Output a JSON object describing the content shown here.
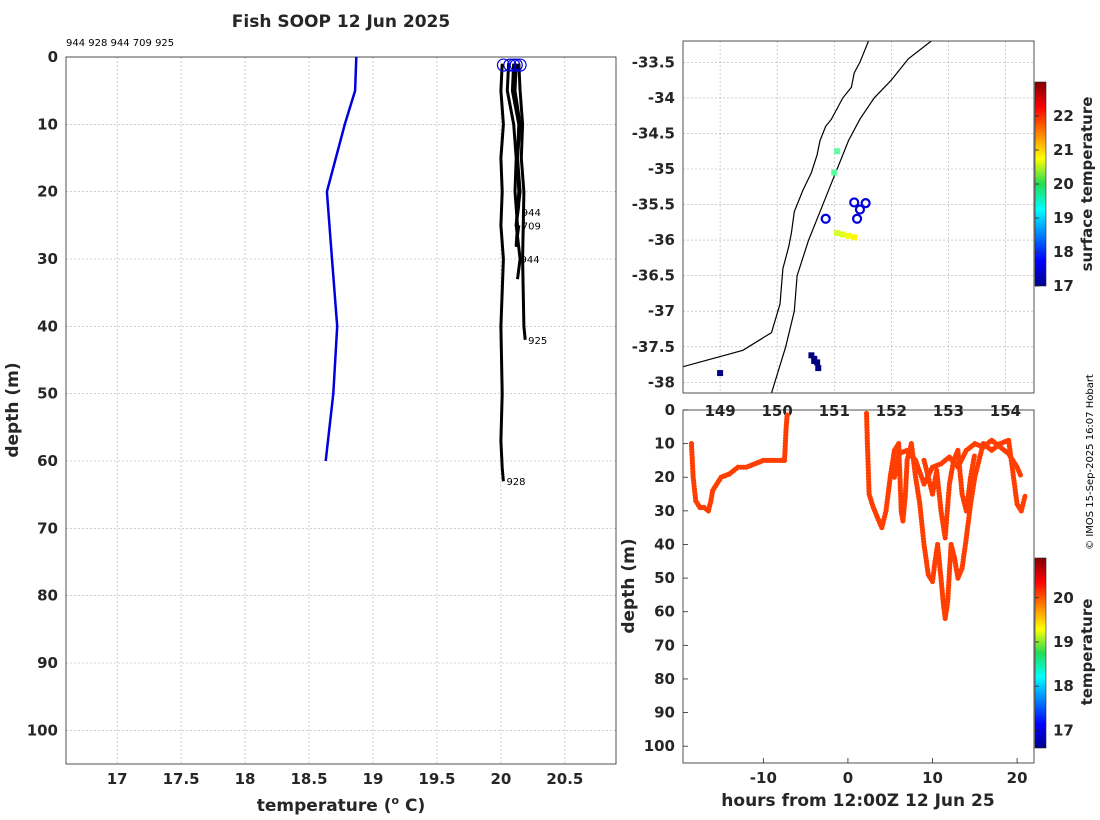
{
  "credit": "© IMOS 15-Sep-2025 16:07 Hobart",
  "chart_data": [
    {
      "id": "profile",
      "type": "line",
      "title": "Fish SOOP 12 Jun 2025",
      "subtitle": "944 928 944 709 925",
      "xlabel": "temperature (",
      "xlabel_sup": "o",
      "xlabel_end": " C)",
      "ylabel": "depth (m)",
      "xlim": [
        16.6,
        20.9
      ],
      "ylim": [
        0,
        105
      ],
      "y_reversed": true,
      "grid": true,
      "xticks": [
        17,
        17.5,
        18,
        18.5,
        19,
        19.5,
        20,
        20.5
      ],
      "xtick_labels": [
        "17",
        "17.5",
        "18",
        "18.5",
        "19",
        "19.5",
        "20",
        "20.5"
      ],
      "yticks": [
        0,
        10,
        20,
        30,
        40,
        50,
        60,
        70,
        80,
        90,
        100
      ],
      "reference_profile": {
        "color": "#0000dd",
        "temperature": [
          18.87,
          18.86,
          18.78,
          18.64,
          18.68,
          18.72,
          18.69,
          18.63
        ],
        "depth": [
          0,
          5,
          10,
          20,
          30,
          40,
          50,
          60
        ]
      },
      "profiles": [
        {
          "label": "928",
          "temperature": [
            20.01,
            20.0,
            20.02,
            20.0,
            20.01,
            20.0,
            20.02,
            20.0,
            20.01,
            20.0,
            20.01,
            20.02
          ],
          "depth": [
            1,
            5,
            10,
            15,
            20,
            25,
            30,
            40,
            50,
            57,
            61,
            63
          ],
          "label_depth": 63
        },
        {
          "label": "944",
          "temperature": [
            20.06,
            20.05,
            20.1,
            20.12,
            20.11,
            20.13,
            20.12,
            20.14
          ],
          "depth": [
            1,
            5,
            10,
            15,
            20,
            25,
            28,
            25
          ],
          "label_depth": 23
        },
        {
          "label": "709",
          "temperature": [
            20.1,
            20.09,
            20.14,
            20.13,
            20.15,
            20.12,
            20.14
          ],
          "depth": [
            1,
            5,
            10,
            15,
            20,
            25,
            22
          ],
          "label_depth": 25
        },
        {
          "label": "944",
          "temperature": [
            20.12,
            20.11,
            20.15,
            20.13,
            20.14,
            20.12,
            20.15,
            20.13
          ],
          "depth": [
            1,
            5,
            10,
            15,
            20,
            25,
            30,
            33
          ],
          "label_depth": 30
        },
        {
          "label": "925",
          "temperature": [
            20.14,
            20.15,
            20.17,
            20.16,
            20.18,
            20.17,
            20.18,
            20.19
          ],
          "depth": [
            1,
            5,
            10,
            15,
            20,
            30,
            40,
            42
          ],
          "label_depth": 42
        }
      ],
      "surface_markers_temperature": [
        20.02,
        20.07,
        20.1,
        20.12,
        20.15
      ],
      "marker_color": "#0000dd"
    },
    {
      "id": "map",
      "type": "scatter",
      "xlim": [
        148.35,
        154.5
      ],
      "ylim": [
        -38.15,
        -33.2
      ],
      "xticks": [
        149,
        150,
        151,
        152,
        153,
        154
      ],
      "xtick_labels": [
        "149",
        "150",
        "151",
        "152",
        "153",
        "154"
      ],
      "yticks": [
        -33.5,
        -34,
        -34.5,
        -35,
        -35.5,
        -36,
        -36.5,
        -37,
        -37.5,
        -38
      ],
      "ytick_labels": [
        "-33.5",
        "-34",
        "-34.5",
        "-35",
        "-35.5",
        "-36",
        "-36.5",
        "-37",
        "-37.5",
        "-38"
      ],
      "grid": true,
      "colorbar": {
        "label": "surface temperature",
        "range": [
          17,
          23
        ],
        "ticks": [
          17,
          18,
          19,
          20,
          21,
          22
        ]
      },
      "coastline": {
        "lon": [
          148.35,
          149.4,
          149.9,
          150.05,
          150.1,
          150.2,
          150.25,
          150.3,
          150.45,
          150.6,
          150.7,
          150.75,
          150.85,
          150.95,
          151.05,
          151.15,
          151.3,
          151.35,
          151.45,
          151.6
        ],
        "lat": [
          -37.78,
          -37.55,
          -37.3,
          -36.9,
          -36.4,
          -36.1,
          -35.9,
          -35.6,
          -35.3,
          -35.05,
          -34.8,
          -34.6,
          -34.4,
          -34.3,
          -34.15,
          -34.0,
          -33.85,
          -33.65,
          -33.5,
          -33.2
        ]
      },
      "isobath": {
        "lon": [
          149.9,
          150.15,
          150.3,
          150.35,
          150.55,
          150.75,
          150.95,
          151.1,
          151.25,
          151.45,
          151.7,
          152.0,
          152.3,
          152.7
        ],
        "lat": [
          -38.15,
          -37.5,
          -37.0,
          -36.5,
          -36.0,
          -35.6,
          -35.2,
          -34.9,
          -34.6,
          -34.3,
          -34.0,
          -33.75,
          -33.45,
          -33.2
        ]
      },
      "tracks": [
        {
          "lon": [
            149.0
          ],
          "lat": [
            -37.87
          ],
          "temperature": [
            17
          ]
        },
        {
          "lon": [
            150.6,
            150.65,
            150.7,
            150.72,
            150.65
          ],
          "lat": [
            -37.62,
            -37.67,
            -37.72,
            -37.8,
            -37.7
          ],
          "temperature": [
            17,
            17,
            17,
            17,
            17
          ]
        },
        {
          "lon": [
            151.05,
            151.0
          ],
          "lat": [
            -34.75,
            -35.05
          ],
          "temperature": [
            19.8,
            19.8
          ]
        },
        {
          "lon": [
            151.05,
            151.15,
            151.25,
            151.35
          ],
          "lat": [
            -35.9,
            -35.92,
            -35.94,
            -35.96
          ],
          "temperature": [
            20.5,
            20.6,
            20.7,
            20.8
          ]
        }
      ],
      "profile_stations": {
        "lon": [
          150.85,
          151.35,
          151.45,
          151.55,
          151.4
        ],
        "lat": [
          -35.7,
          -35.47,
          -35.57,
          -35.48,
          -35.7
        ]
      }
    },
    {
      "id": "section",
      "type": "scatter",
      "xlabel": "hours from 12:00Z 12 Jun 25",
      "ylabel": "depth (m)",
      "xlim": [
        -19.5,
        22
      ],
      "ylim": [
        0,
        105
      ],
      "y_reversed": true,
      "xticks": [
        -10,
        0,
        10,
        20
      ],
      "xtick_labels": [
        "-10",
        "0",
        "10",
        "20"
      ],
      "yticks": [
        0,
        10,
        20,
        30,
        40,
        50,
        60,
        70,
        80,
        90,
        100
      ],
      "colorbar": {
        "label": "temperature",
        "range": [
          16.6,
          20.9
        ],
        "ticks": [
          17,
          18,
          19,
          20
        ]
      },
      "point_temperature": 20.1,
      "casts": [
        {
          "t": [
            -18.5,
            -18.3,
            -18.0,
            -17.5,
            -17.0,
            -16.5,
            -16.2,
            -16.0,
            -15.5,
            -15.0,
            -14.0,
            -13.0,
            -12.0,
            -11.0,
            -10.0,
            -9.0,
            -8.0,
            -7.5,
            -7.3,
            -7.2,
            -7.1
          ],
          "d": [
            10,
            20,
            27,
            29,
            29,
            30,
            27,
            24,
            22,
            20,
            19,
            17,
            17,
            16,
            15,
            15,
            15,
            15,
            5,
            2,
            1
          ]
        },
        {
          "t": [
            2.2,
            2.3,
            2.5,
            3.0,
            3.5,
            4.0,
            4.5,
            5.0,
            5.5,
            6.0,
            6.3,
            6.5,
            6.8,
            7.0,
            7.5,
            8.0,
            8.5
          ],
          "d": [
            1,
            10,
            25,
            29,
            32,
            35,
            30,
            20,
            12,
            10,
            30,
            33,
            25,
            15,
            10,
            20,
            28
          ]
        },
        {
          "t": [
            8.5,
            9.0,
            9.5,
            10.0,
            10.3,
            10.6,
            11.0,
            11.3,
            11.5,
            11.8,
            12.0,
            12.2
          ],
          "d": [
            28,
            40,
            49,
            51,
            45,
            40,
            50,
            58,
            62,
            57,
            48,
            40
          ]
        },
        {
          "t": [
            12.2,
            12.6,
            13.0,
            13.5,
            14.0,
            14.5,
            15.0,
            15.5,
            16.0,
            17.0,
            18.0,
            19.0,
            20.0,
            20.5,
            21.0
          ],
          "d": [
            40,
            44,
            50,
            47,
            38,
            28,
            20,
            15,
            10,
            12,
            10,
            9,
            28,
            30,
            25
          ]
        },
        {
          "t": [
            9.0,
            9.5,
            10.0,
            10.5,
            11.0,
            11.5,
            12.0,
            12.5,
            13.0,
            13.5,
            14.0,
            14.5,
            15.0
          ],
          "d": [
            15,
            20,
            25,
            18,
            30,
            38,
            22,
            15,
            12,
            25,
            30,
            20,
            13
          ]
        },
        {
          "t": [
            5.5,
            6.0,
            7.0,
            8.0,
            9.0,
            10.0,
            11.0,
            12.0,
            13.0,
            14.0,
            15.0,
            16.0,
            17.0,
            18.0,
            19.0,
            20.0,
            20.5
          ],
          "d": [
            20,
            13,
            12,
            15,
            22,
            17,
            16,
            14,
            17,
            12,
            10,
            11,
            9,
            11,
            13,
            17,
            20
          ]
        }
      ]
    }
  ]
}
